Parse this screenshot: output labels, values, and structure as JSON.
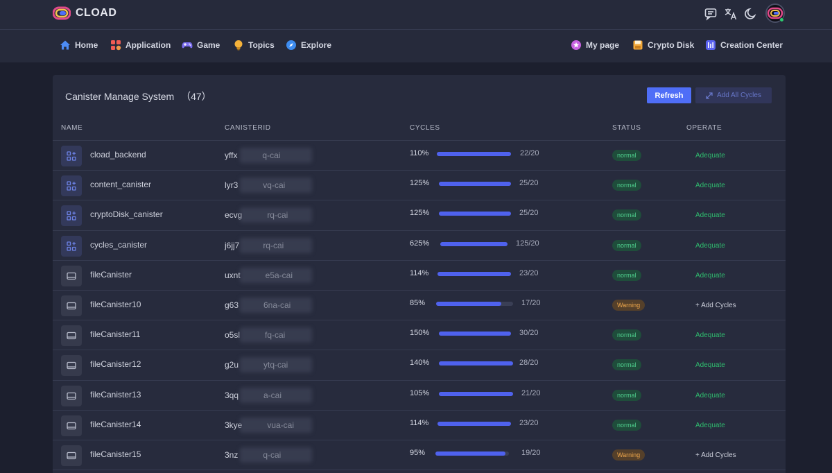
{
  "header": {
    "brand": "CLOAD",
    "icons": [
      "chat-icon",
      "translate-icon",
      "moon-icon",
      "avatar"
    ]
  },
  "nav": {
    "left": [
      {
        "label": "Home",
        "icon": "home-icon"
      },
      {
        "label": "Application",
        "icon": "application-icon"
      },
      {
        "label": "Game",
        "icon": "gamepad-icon"
      },
      {
        "label": "Topics",
        "icon": "lightbulb-icon"
      },
      {
        "label": "Explore",
        "icon": "compass-icon"
      }
    ],
    "right": [
      {
        "label": "My page",
        "icon": "user-star-icon"
      },
      {
        "label": "Crypto Disk",
        "icon": "disk-icon"
      },
      {
        "label": "Creation Center",
        "icon": "creation-icon"
      }
    ]
  },
  "panel": {
    "title": "Canister Manage System",
    "count": "（47）",
    "refresh_label": "Refresh",
    "add_all_label": "Add All Cycles"
  },
  "table": {
    "headers": [
      "NAME",
      "CANISTERID",
      "CYCLES",
      "STATUS",
      "OPERATE"
    ],
    "rows": [
      {
        "type": "app",
        "name": "cload_backend",
        "canister_id": "yffx                  q-cai",
        "percent": "110%",
        "fill": 1.0,
        "ratio": "22/20",
        "status": "normal",
        "operate": "Adequate"
      },
      {
        "type": "app",
        "name": "content_canister",
        "canister_id": "lyr3                  vq-cai",
        "percent": "125%",
        "fill": 1.0,
        "ratio": "25/20",
        "status": "normal",
        "operate": "Adequate"
      },
      {
        "type": "app",
        "name": "cryptoDisk_canister",
        "canister_id": "ecvg                  rq-cai",
        "percent": "125%",
        "fill": 1.0,
        "ratio": "25/20",
        "status": "normal",
        "operate": "Adequate"
      },
      {
        "type": "app",
        "name": "cycles_canister",
        "canister_id": "j6jj7                 rq-cai",
        "percent": "625%",
        "fill": 1.0,
        "ratio": "125/20",
        "status": "normal",
        "operate": "Adequate"
      },
      {
        "type": "file",
        "name": "fileCanister",
        "canister_id": "uxnt                  e5a-cai",
        "percent": "114%",
        "fill": 1.0,
        "ratio": "23/20",
        "status": "normal",
        "operate": "Adequate"
      },
      {
        "type": "file",
        "name": "fileCanister10",
        "canister_id": "g63                  6na-cai",
        "percent": "85%",
        "fill": 0.85,
        "ratio": "17/20",
        "status": "Warning",
        "operate": "+ Add Cycles"
      },
      {
        "type": "file",
        "name": "fileCanister11",
        "canister_id": "o5sl                  fq-cai",
        "percent": "150%",
        "fill": 1.0,
        "ratio": "30/20",
        "status": "normal",
        "operate": "Adequate"
      },
      {
        "type": "file",
        "name": "fileCanister12",
        "canister_id": "g2u                  ytq-cai",
        "percent": "140%",
        "fill": 1.0,
        "ratio": "28/20",
        "status": "normal",
        "operate": "Adequate"
      },
      {
        "type": "file",
        "name": "fileCanister13",
        "canister_id": "3qq                  a-cai",
        "percent": "105%",
        "fill": 1.0,
        "ratio": "21/20",
        "status": "normal",
        "operate": "Adequate"
      },
      {
        "type": "file",
        "name": "fileCanister14",
        "canister_id": "3kye                  vua-cai",
        "percent": "114%",
        "fill": 1.0,
        "ratio": "23/20",
        "status": "normal",
        "operate": "Adequate"
      },
      {
        "type": "file",
        "name": "fileCanister15",
        "canister_id": "3nz                  q-cai",
        "percent": "95%",
        "fill": 0.95,
        "ratio": "19/20",
        "status": "Warning",
        "operate": "+ Add Cycles"
      }
    ]
  },
  "colors": {
    "accent": "#4f6ef7",
    "normal": "#4fd08e",
    "warning": "#f0a84c",
    "adequate": "#2fbd6f"
  }
}
